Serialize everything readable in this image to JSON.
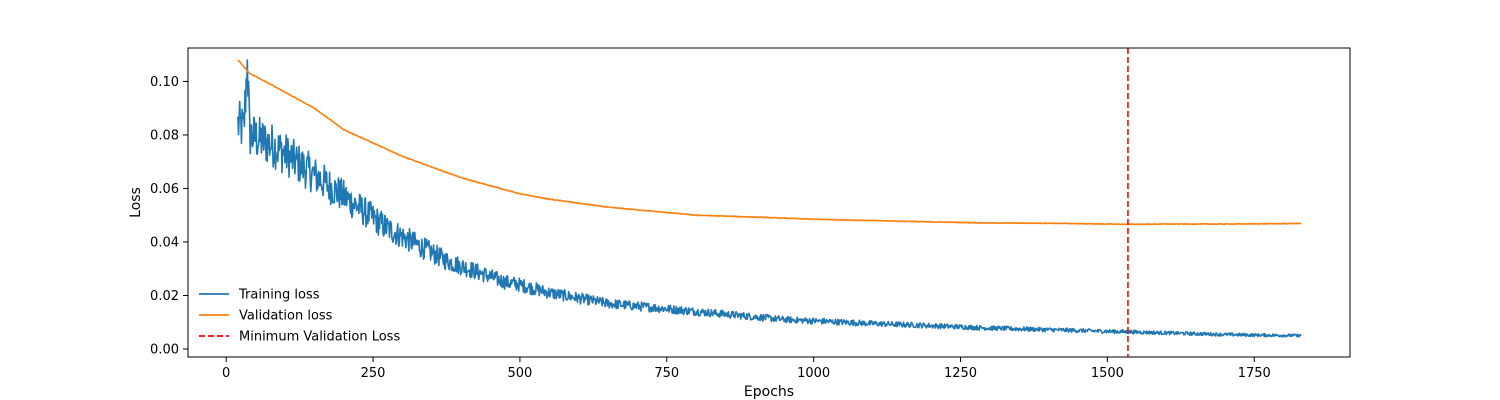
{
  "chart_data": {
    "type": "line",
    "xlabel": "Epochs",
    "ylabel": "Loss",
    "xlim": [
      -65,
      1913
    ],
    "ylim": [
      -0.003,
      0.1125
    ],
    "xticks": [
      0,
      250,
      500,
      750,
      1000,
      1250,
      1500,
      1750
    ],
    "yticks": [
      0.0,
      0.02,
      0.04,
      0.06,
      0.08,
      0.1
    ],
    "ytick_labels": [
      "0.00",
      "0.02",
      "0.04",
      "0.06",
      "0.08",
      "0.10"
    ],
    "grid": false,
    "legend_position": "lower-left",
    "series": [
      {
        "name": "Training loss",
        "color": "#1f77b4",
        "style": "solid",
        "x_range": [
          20,
          1830
        ],
        "points": [
          [
            20,
            0.084
          ],
          [
            30,
            0.082
          ],
          [
            36,
            0.108
          ],
          [
            40,
            0.08
          ],
          [
            60,
            0.078
          ],
          [
            80,
            0.076
          ],
          [
            100,
            0.073
          ],
          [
            125,
            0.069
          ],
          [
            150,
            0.065
          ],
          [
            175,
            0.061
          ],
          [
            200,
            0.057
          ],
          [
            225,
            0.053
          ],
          [
            250,
            0.049
          ],
          [
            275,
            0.045
          ],
          [
            300,
            0.042
          ],
          [
            325,
            0.039
          ],
          [
            350,
            0.036
          ],
          [
            375,
            0.033
          ],
          [
            400,
            0.031
          ],
          [
            425,
            0.029
          ],
          [
            450,
            0.027
          ],
          [
            475,
            0.025
          ],
          [
            500,
            0.024
          ],
          [
            550,
            0.021
          ],
          [
            600,
            0.019
          ],
          [
            650,
            0.017
          ],
          [
            700,
            0.016
          ],
          [
            750,
            0.015
          ],
          [
            800,
            0.014
          ],
          [
            850,
            0.013
          ],
          [
            900,
            0.012
          ],
          [
            950,
            0.011
          ],
          [
            1000,
            0.0105
          ],
          [
            1100,
            0.0095
          ],
          [
            1200,
            0.0087
          ],
          [
            1300,
            0.0078
          ],
          [
            1400,
            0.0072
          ],
          [
            1500,
            0.0066
          ],
          [
            1550,
            0.0063
          ],
          [
            1600,
            0.006
          ],
          [
            1650,
            0.0057
          ],
          [
            1700,
            0.0054
          ],
          [
            1750,
            0.0052
          ],
          [
            1830,
            0.005
          ]
        ]
      },
      {
        "name": "Validation loss",
        "color": "#ff7f0e",
        "style": "solid",
        "points": [
          [
            20,
            0.108
          ],
          [
            40,
            0.103
          ],
          [
            75,
            0.099
          ],
          [
            100,
            0.096
          ],
          [
            150,
            0.09
          ],
          [
            200,
            0.082
          ],
          [
            250,
            0.077
          ],
          [
            300,
            0.072
          ],
          [
            350,
            0.068
          ],
          [
            400,
            0.064
          ],
          [
            450,
            0.061
          ],
          [
            500,
            0.058
          ],
          [
            550,
            0.056
          ],
          [
            600,
            0.0545
          ],
          [
            650,
            0.053
          ],
          [
            700,
            0.052
          ],
          [
            750,
            0.051
          ],
          [
            800,
            0.05
          ],
          [
            900,
            0.0493
          ],
          [
            1000,
            0.0485
          ],
          [
            1100,
            0.048
          ],
          [
            1200,
            0.0475
          ],
          [
            1300,
            0.0471
          ],
          [
            1400,
            0.047
          ],
          [
            1500,
            0.0467
          ],
          [
            1535,
            0.0466
          ],
          [
            1600,
            0.0467
          ],
          [
            1700,
            0.0467
          ],
          [
            1830,
            0.0469
          ]
        ]
      },
      {
        "name": "Minimum Validation Loss",
        "color": "#ff0000",
        "style": "dashed",
        "type": "vline",
        "x": 1535
      }
    ]
  }
}
